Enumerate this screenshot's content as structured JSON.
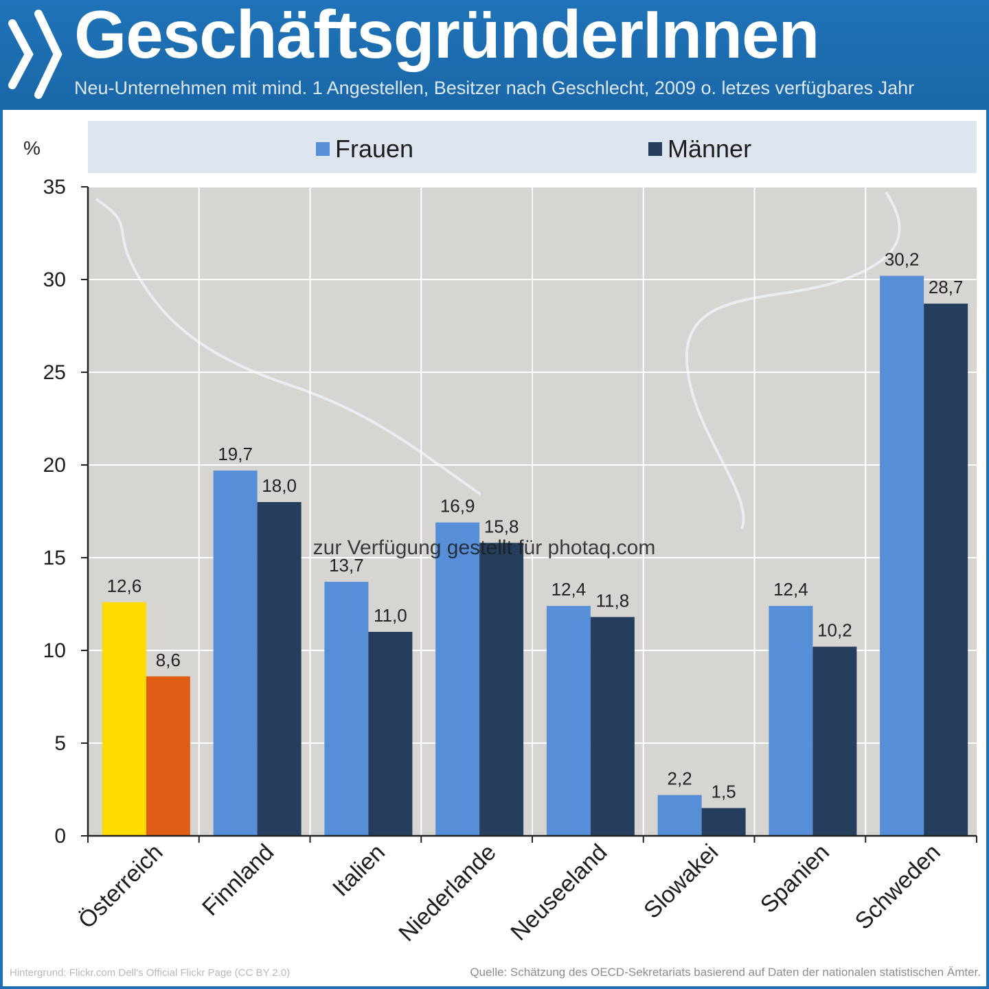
{
  "header": {
    "title": "GeschäftsgründerInnen",
    "subtitle": "Neu-Unternehmen mit mind. 1 Angestellen, Besitzer nach Geschlecht,  2009 o. letzes verfügbares Jahr"
  },
  "legend": {
    "women_label": "Frauen",
    "men_label": "Männer"
  },
  "unit_label": "%",
  "watermark": "zur Verfügung gestellt für photaq.com",
  "footer": {
    "background_credit": "Hintergrund: Flickr.com Dell's Official Flickr Page (CC BY 2.0)",
    "source": "Quelle: Schätzung des OECD-Sekretariats basierend auf Daten der nationalen statistischen Ämter."
  },
  "colors": {
    "women": "#568fd8",
    "men": "#253e5e",
    "highlight_women": "#ffdc00",
    "highlight_men": "#e05e14",
    "header_bg": "#1f6fb2"
  },
  "chart_data": {
    "type": "bar",
    "categories": [
      "Österreich",
      "Finnland",
      "Italien",
      "Niederlande",
      "Neuseeland",
      "Slowakei",
      "Spanien",
      "Schweden"
    ],
    "series": [
      {
        "name": "Frauen",
        "values": [
          12.6,
          19.7,
          13.7,
          16.9,
          12.4,
          2.2,
          12.4,
          30.2
        ]
      },
      {
        "name": "Männer",
        "values": [
          8.6,
          18.0,
          11.0,
          15.8,
          11.8,
          1.5,
          10.2,
          28.7
        ]
      }
    ],
    "value_labels": {
      "Frauen": [
        "12,6",
        "19,7",
        "13,7",
        "16,9",
        "12,4",
        "2,2",
        "12,4",
        "30,2"
      ],
      "Männer": [
        "8,6",
        "18,0",
        "11,0",
        "15,8",
        "11,8",
        "1,5",
        "10,2",
        "28,7"
      ]
    },
    "ylim": [
      0,
      35
    ],
    "yticks": [
      0,
      5,
      10,
      15,
      20,
      25,
      30,
      35
    ],
    "ylabel": "%",
    "highlight_category": "Österreich",
    "grid": true,
    "legend_position": "top"
  }
}
